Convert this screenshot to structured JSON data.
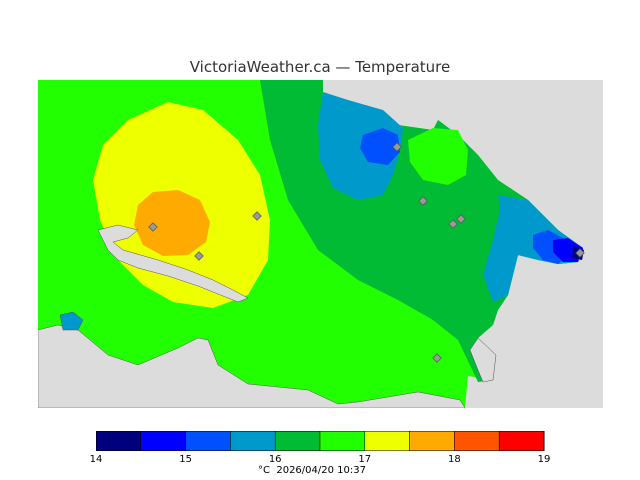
{
  "title": "VictoriaWeather.ca — Temperature",
  "legend": {
    "colors": [
      "#00007f",
      "#0000ff",
      "#0050ff",
      "#0099cc",
      "#00bb33",
      "#22ff00",
      "#eeff00",
      "#ffaa00",
      "#ff5500",
      "#ff0000"
    ],
    "tick_labels": [
      {
        "value": 14,
        "label": "14"
      },
      {
        "value": 15,
        "label": "15"
      },
      {
        "value": 16,
        "label": "16"
      },
      {
        "value": 17,
        "label": "17"
      },
      {
        "value": 18,
        "label": "18"
      },
      {
        "value": 19,
        "label": "19"
      }
    ],
    "range": [
      14,
      19
    ]
  },
  "footer": {
    "unit": "°C",
    "timestamp": "2026/04/20 10:37"
  },
  "colors": {
    "land_unknown": "#dcdcdc",
    "station_marker": "#999999"
  }
}
